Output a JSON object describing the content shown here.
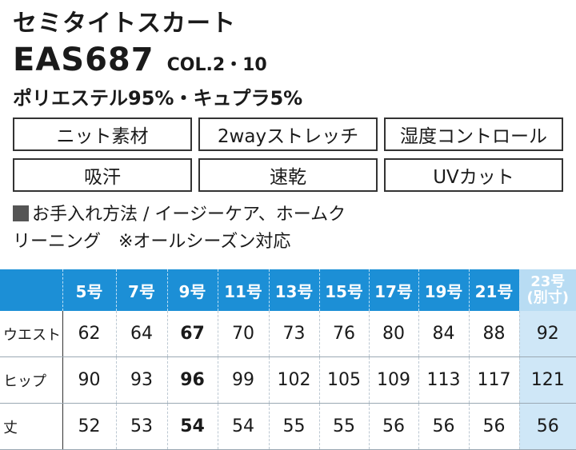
{
  "product": {
    "name": "セミタイトスカート",
    "code": "EAS687",
    "colors": "COL.2・10",
    "material": "ポリエステル95%・キュプラ5%"
  },
  "features": [
    "ニット素材",
    "2wayストレッチ",
    "湿度コントロール",
    "吸汗",
    "速乾",
    "UVカット"
  ],
  "care": {
    "line1": "お手入れ方法 / イージーケア、ホームク",
    "line2": "リーニング　※オールシーズン対応"
  },
  "size_table": {
    "sizes": [
      "5号",
      "7号",
      "9号",
      "11号",
      "13号",
      "15号",
      "17号",
      "19号",
      "21号"
    ],
    "last_size": "23号",
    "last_note": "(別寸)",
    "rows": [
      {
        "label": "ウエスト",
        "values": [
          "62",
          "64",
          "67",
          "70",
          "73",
          "76",
          "80",
          "84",
          "88",
          "92"
        ]
      },
      {
        "label": "ヒップ",
        "values": [
          "90",
          "93",
          "96",
          "99",
          "102",
          "105",
          "109",
          "113",
          "117",
          "121"
        ]
      },
      {
        "label": "丈",
        "values": [
          "52",
          "53",
          "54",
          "54",
          "55",
          "55",
          "56",
          "56",
          "56",
          "56"
        ]
      }
    ]
  }
}
